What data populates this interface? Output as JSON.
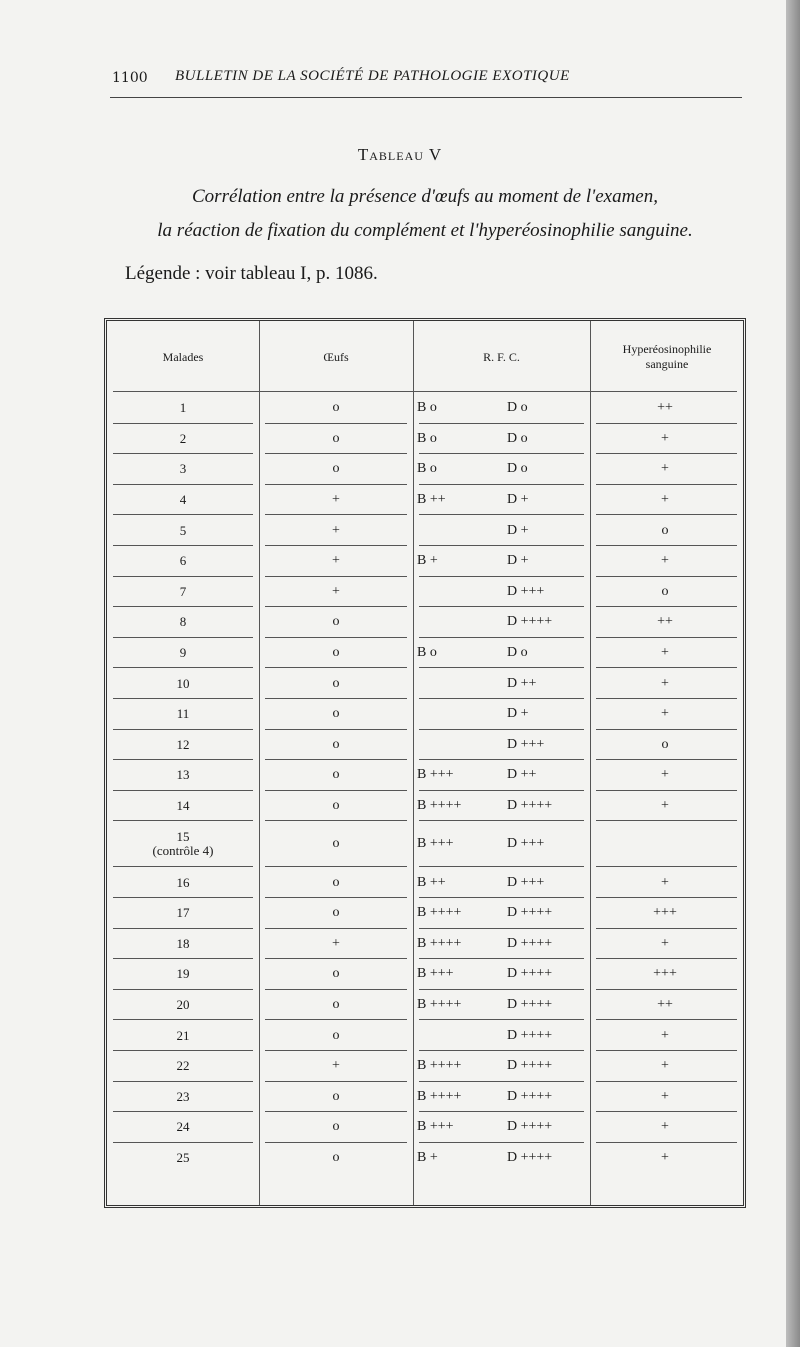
{
  "header": {
    "page_number": "1100",
    "running_title": "BULLETIN DE LA SOCIÉTÉ DE PATHOLOGIE EXOTIQUE"
  },
  "table_title": "Tableau V",
  "caption_lines": [
    "Corrélation entre la présence d'œufs au moment de l'examen,",
    "la réaction de fixation du complément et l'hyperéosinophilie sanguine."
  ],
  "legend": "Légende : voir tableau I, p. 1086.",
  "table": {
    "columns": [
      "Malades",
      "Œufs",
      "R. F. C.",
      "Hyperéosinophilie sanguine"
    ],
    "rows": [
      {
        "malade": "1",
        "oeufs": "o",
        "rfc_b": "B o",
        "rfc_d": "D o",
        "hyper": "++"
      },
      {
        "malade": "2",
        "oeufs": "o",
        "rfc_b": "B o",
        "rfc_d": "D o",
        "hyper": "+"
      },
      {
        "malade": "3",
        "oeufs": "o",
        "rfc_b": "B o",
        "rfc_d": "D o",
        "hyper": "+"
      },
      {
        "malade": "4",
        "oeufs": "+",
        "rfc_b": "B ++",
        "rfc_d": "D +",
        "hyper": "+"
      },
      {
        "malade": "5",
        "oeufs": "+",
        "rfc_b": "",
        "rfc_d": "D +",
        "hyper": "o"
      },
      {
        "malade": "6",
        "oeufs": "+",
        "rfc_b": "B +",
        "rfc_d": "D +",
        "hyper": "+"
      },
      {
        "malade": "7",
        "oeufs": "+",
        "rfc_b": "",
        "rfc_d": "D +++",
        "hyper": "o"
      },
      {
        "malade": "8",
        "oeufs": "o",
        "rfc_b": "",
        "rfc_d": "D ++++",
        "hyper": "++"
      },
      {
        "malade": "9",
        "oeufs": "o",
        "rfc_b": "B o",
        "rfc_d": "D o",
        "hyper": "+"
      },
      {
        "malade": "10",
        "oeufs": "o",
        "rfc_b": "",
        "rfc_d": "D ++",
        "hyper": "+"
      },
      {
        "malade": "11",
        "oeufs": "o",
        "rfc_b": "",
        "rfc_d": "D +",
        "hyper": "+"
      },
      {
        "malade": "12",
        "oeufs": "o",
        "rfc_b": "",
        "rfc_d": "D +++",
        "hyper": "o"
      },
      {
        "malade": "13",
        "oeufs": "o",
        "rfc_b": "B +++",
        "rfc_d": "D ++",
        "hyper": "+"
      },
      {
        "malade": "14",
        "oeufs": "o",
        "rfc_b": "B ++++",
        "rfc_d": "D ++++",
        "hyper": "+"
      },
      {
        "malade": "15",
        "note": "(contrôle 4)",
        "oeufs": "o",
        "rfc_b": "B +++",
        "rfc_d": "D +++",
        "hyper": ""
      },
      {
        "malade": "16",
        "oeufs": "o",
        "rfc_b": "B ++",
        "rfc_d": "D +++",
        "hyper": "+"
      },
      {
        "malade": "17",
        "oeufs": "o",
        "rfc_b": "B ++++",
        "rfc_d": "D ++++",
        "hyper": "+++"
      },
      {
        "malade": "18",
        "oeufs": "+",
        "rfc_b": "B ++++",
        "rfc_d": "D ++++",
        "hyper": "+"
      },
      {
        "malade": "19",
        "oeufs": "o",
        "rfc_b": "B +++",
        "rfc_d": "D ++++",
        "hyper": "+++"
      },
      {
        "malade": "20",
        "oeufs": "o",
        "rfc_b": "B ++++",
        "rfc_d": "D ++++",
        "hyper": "++"
      },
      {
        "malade": "21",
        "oeufs": "o",
        "rfc_b": "",
        "rfc_d": "D ++++",
        "hyper": "+"
      },
      {
        "malade": "22",
        "oeufs": "+",
        "rfc_b": "B ++++",
        "rfc_d": "D ++++",
        "hyper": "+"
      },
      {
        "malade": "23",
        "oeufs": "o",
        "rfc_b": "B ++++",
        "rfc_d": "D ++++",
        "hyper": "+"
      },
      {
        "malade": "24",
        "oeufs": "o",
        "rfc_b": "B +++",
        "rfc_d": "D ++++",
        "hyper": "+"
      },
      {
        "malade": "25",
        "oeufs": "o",
        "rfc_b": "B +",
        "rfc_d": "D ++++",
        "hyper": "+"
      }
    ]
  }
}
